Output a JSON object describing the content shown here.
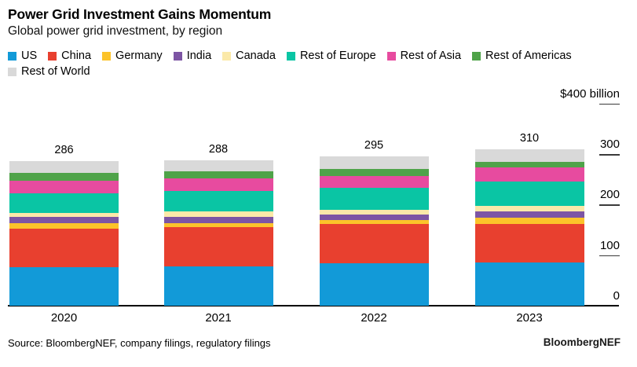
{
  "header": {
    "title": "Power Grid Investment Gains Momentum",
    "subtitle": "Global power grid investment, by region"
  },
  "chart_data": {
    "type": "bar",
    "stacked": true,
    "title": "Power Grid Investment Gains Momentum",
    "subtitle": "Global power grid investment, by region",
    "categories": [
      "2020",
      "2021",
      "2022",
      "2023"
    ],
    "totals": [
      286,
      288,
      295,
      310
    ],
    "series": [
      {
        "name": "US",
        "color": "#129ad8",
        "values": [
          76,
          77,
          84,
          86
        ]
      },
      {
        "name": "China",
        "color": "#e8402f",
        "values": [
          77,
          78,
          77,
          76
        ]
      },
      {
        "name": "Germany",
        "color": "#fcc32a",
        "values": [
          10,
          9,
          9,
          12
        ]
      },
      {
        "name": "India",
        "color": "#7d55a4",
        "values": [
          13,
          12,
          11,
          12
        ]
      },
      {
        "name": "Canada",
        "color": "#fbe9a9",
        "values": [
          8,
          10,
          9,
          12
        ]
      },
      {
        "name": "Rest of Europe",
        "color": "#0ac5a4",
        "values": [
          39,
          41,
          44,
          47
        ]
      },
      {
        "name": "Rest of Asia",
        "color": "#e74b9f",
        "values": [
          25,
          25,
          23,
          28
        ]
      },
      {
        "name": "Rest of Americas",
        "color": "#4fa349",
        "values": [
          15,
          14,
          13,
          12
        ]
      },
      {
        "name": "Rest of World",
        "color": "#d9d9d9",
        "values": [
          23,
          22,
          25,
          25
        ]
      }
    ],
    "unit": "$ billion",
    "ylim": [
      0,
      400
    ],
    "yticks": [
      {
        "value": 0,
        "label": "0"
      },
      {
        "value": 100,
        "label": "100"
      },
      {
        "value": 200,
        "label": "200"
      },
      {
        "value": 300,
        "label": "300"
      },
      {
        "value": 400,
        "label": "$400 billion"
      }
    ],
    "legend_position": "top",
    "grid": false,
    "value_labels": true
  },
  "footer": {
    "source": "Source: BloombergNEF, company filings, regulatory filings",
    "brand": "BloombergNEF"
  }
}
